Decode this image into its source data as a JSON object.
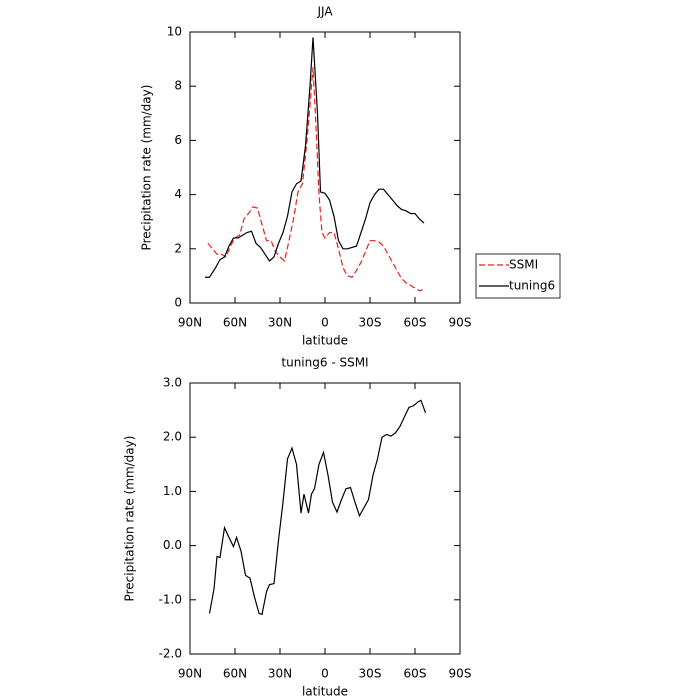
{
  "chart_data": [
    {
      "type": "line",
      "title": "JJA",
      "xlabel": "latitude",
      "ylabel": "Precipitation rate (mm/day)",
      "xlim": [
        90,
        -90
      ],
      "xticks": [
        {
          "value": 90,
          "label": "90N"
        },
        {
          "value": 60,
          "label": "60N"
        },
        {
          "value": 30,
          "label": "30N"
        },
        0,
        {
          "value": -30,
          "label": "30S"
        },
        {
          "value": -60,
          "label": "60S"
        },
        {
          "value": -90,
          "label": "90S"
        }
      ],
      "ylim": [
        0,
        10
      ],
      "yticks": [
        0,
        2,
        4,
        6,
        8,
        10
      ],
      "legend": "right",
      "series": [
        {
          "name": "SSMI",
          "color": "#e8221e",
          "dashed": true,
          "x": [
            78,
            75,
            72,
            69,
            66,
            63,
            60,
            57,
            54,
            51,
            48,
            45,
            42,
            39,
            36,
            33,
            30,
            27,
            24,
            21,
            18,
            15,
            12,
            10,
            8,
            6,
            4,
            2,
            0,
            -3,
            -6,
            -9,
            -12,
            -15,
            -18,
            -21,
            -24,
            -27,
            -30,
            -33,
            -36,
            -39,
            -42,
            -45,
            -48,
            -51,
            -54,
            -57,
            -60,
            -63,
            -66
          ],
          "values": [
            2.2,
            2.0,
            1.8,
            1.8,
            1.7,
            2.1,
            2.4,
            2.5,
            3.1,
            3.3,
            3.55,
            3.5,
            2.9,
            2.3,
            2.3,
            1.9,
            1.7,
            1.55,
            2.3,
            3.1,
            4.1,
            4.4,
            6.0,
            7.3,
            8.7,
            6.5,
            4.0,
            2.6,
            2.4,
            2.6,
            2.6,
            2.0,
            1.3,
            1.0,
            0.95,
            1.2,
            1.5,
            1.9,
            2.3,
            2.3,
            2.25,
            2.1,
            1.8,
            1.5,
            1.2,
            0.9,
            0.75,
            0.65,
            0.55,
            0.45,
            0.5
          ]
        },
        {
          "name": "tuning6",
          "color": "#000000",
          "dashed": false,
          "x": [
            80,
            77,
            73,
            70,
            67,
            64,
            61,
            58,
            55,
            52,
            49,
            46,
            43,
            40,
            37,
            34,
            31,
            28,
            25,
            22,
            19,
            16,
            13,
            10,
            8,
            5,
            3,
            0,
            -3,
            -6,
            -9,
            -12,
            -15,
            -18,
            -21,
            -24,
            -27,
            -30,
            -33,
            -36,
            -39,
            -42,
            -45,
            -48,
            -51,
            -54,
            -57,
            -60,
            -63,
            -66
          ],
          "values": [
            0.95,
            0.95,
            1.3,
            1.6,
            1.7,
            2.1,
            2.4,
            2.4,
            2.5,
            2.6,
            2.65,
            2.2,
            2.05,
            1.8,
            1.55,
            1.7,
            2.2,
            2.6,
            3.2,
            4.1,
            4.4,
            4.5,
            5.8,
            8.0,
            9.8,
            7.0,
            4.1,
            4.05,
            3.8,
            3.2,
            2.3,
            2.0,
            2.0,
            2.05,
            2.1,
            2.6,
            3.1,
            3.7,
            4.0,
            4.2,
            4.2,
            4.0,
            3.8,
            3.6,
            3.45,
            3.4,
            3.3,
            3.3,
            3.1,
            2.95
          ]
        }
      ]
    },
    {
      "type": "line",
      "title": "tuning6 - SSMI",
      "xlabel": "latitude",
      "ylabel": "Precipitation rate (mm/day)",
      "xlim": [
        90,
        -90
      ],
      "xticks": [
        {
          "value": 90,
          "label": "90N"
        },
        {
          "value": 60,
          "label": "60N"
        },
        {
          "value": 30,
          "label": "30N"
        },
        0,
        {
          "value": -30,
          "label": "30S"
        },
        {
          "value": -60,
          "label": "60S"
        },
        {
          "value": -90,
          "label": "90S"
        }
      ],
      "ylim": [
        -2,
        3
      ],
      "yticks": [
        {
          "value": -2,
          "label": "-2.0"
        },
        {
          "value": -1,
          "label": "-1.0"
        },
        {
          "value": 0,
          "label": "0.0"
        },
        {
          "value": 1,
          "label": "1.0"
        },
        {
          "value": 2,
          "label": "2.0"
        },
        {
          "value": 3,
          "label": "3.0"
        }
      ],
      "color": "#000000",
      "x": [
        77,
        74,
        72,
        70,
        67,
        64,
        61,
        59,
        56,
        53,
        50,
        47,
        44,
        42,
        39,
        37,
        34,
        31,
        28,
        25,
        22,
        19,
        16,
        14,
        11,
        9,
        7,
        4,
        1,
        -2,
        -5,
        -8,
        -11,
        -14,
        -17,
        -20,
        -23,
        -26,
        -29,
        -32,
        -35,
        -38,
        -41,
        -44,
        -47,
        -50,
        -53,
        -56,
        -59,
        -62,
        -64,
        -67
      ],
      "values": [
        -1.25,
        -0.8,
        -0.2,
        -0.22,
        0.33,
        0.15,
        -0.02,
        0.15,
        -0.1,
        -0.55,
        -0.6,
        -0.95,
        -1.25,
        -1.27,
        -0.85,
        -0.72,
        -0.7,
        0.1,
        0.8,
        1.6,
        1.8,
        1.5,
        0.6,
        0.95,
        0.6,
        0.95,
        1.05,
        1.5,
        1.72,
        1.3,
        0.8,
        0.62,
        0.85,
        1.05,
        1.07,
        0.8,
        0.55,
        0.7,
        0.85,
        1.3,
        1.6,
        2.0,
        2.05,
        2.02,
        2.08,
        2.2,
        2.38,
        2.55,
        2.58,
        2.65,
        2.68,
        2.45
      ]
    }
  ]
}
